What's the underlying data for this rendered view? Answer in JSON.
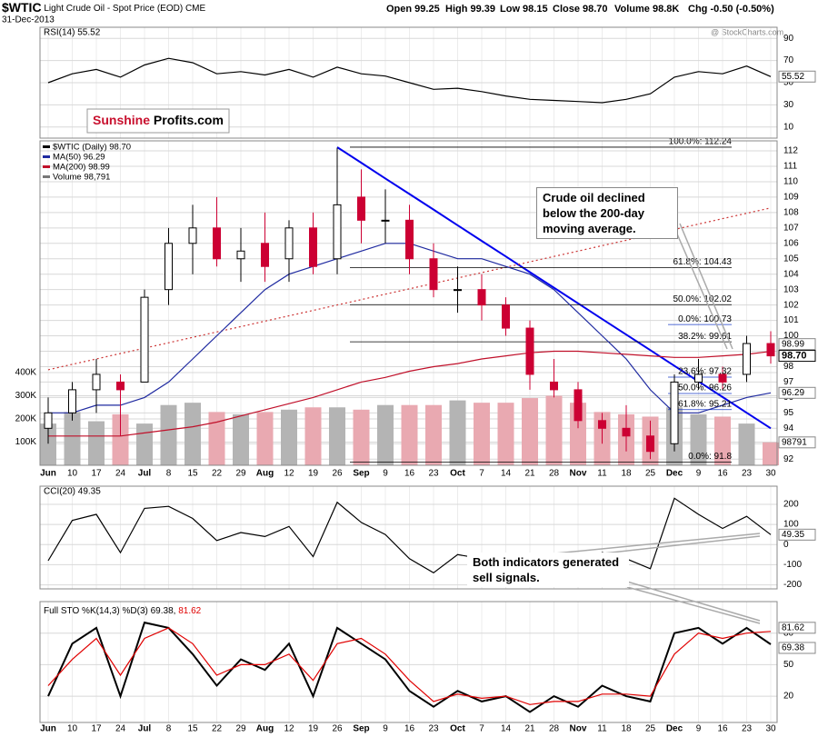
{
  "header": {
    "symbol": "$WTIC",
    "name": "Light Crude Oil - Spot Price (EOD)",
    "exchange": "CME",
    "date": "31-Dec-2013",
    "quote": [
      "Open 99.25",
      "High 99.39",
      "Low 98.15",
      "Close 98.70",
      "Volume 98.8K",
      "Chg -0.50 (-0.50%)"
    ],
    "watermark": "@ StockCharts.com"
  },
  "logo": [
    "Sunshine",
    "Profits.com"
  ],
  "chart_data": [
    {
      "type": "line",
      "title": "RSI(14) 55.52",
      "color": "#000000",
      "tag": "55.52",
      "values": [
        50,
        58,
        62,
        55,
        66,
        72,
        68,
        58,
        60,
        57,
        62,
        55,
        64,
        58,
        56,
        50,
        44,
        45,
        42,
        38,
        35,
        34,
        33,
        32,
        35,
        40,
        55,
        60,
        58,
        65,
        55.52
      ],
      "ylim": [
        0,
        100
      ],
      "yticks": [
        10,
        30,
        50,
        70,
        90
      ]
    },
    {
      "type": "candlestick",
      "title": "$WTIC (Daily) 98.70",
      "tag": "98.70",
      "up_color": "#000000",
      "down_color": "#cc0033",
      "categories": [
        "Jun",
        "10",
        "17",
        "24",
        "Jul",
        "8",
        "15",
        "22",
        "29",
        "Aug",
        "12",
        "19",
        "26",
        "Sep",
        "9",
        "16",
        "23",
        "Oct",
        "7",
        "14",
        "21",
        "28",
        "Nov",
        "11",
        "18",
        "25",
        "Dec",
        "9",
        "16",
        "23",
        "30"
      ],
      "open": [
        94,
        95,
        96.5,
        97,
        97,
        103,
        106,
        107,
        105,
        106,
        105,
        107,
        105,
        109,
        107.5,
        107.5,
        105,
        103,
        103,
        102,
        100.5,
        97,
        96.5,
        94.5,
        94,
        93.5,
        93,
        97,
        97.5,
        97.5,
        99.5
      ],
      "high": [
        96,
        97,
        98.5,
        97.5,
        103,
        107,
        108.5,
        109,
        107,
        108,
        107.5,
        108,
        112.2,
        110.8,
        109.5,
        108.5,
        106,
        104.5,
        104,
        102.5,
        101,
        98.5,
        97,
        95,
        95.5,
        94.5,
        97.5,
        98.5,
        98,
        100,
        100.3
      ],
      "low": [
        93,
        94.5,
        95,
        93.5,
        97,
        102,
        104,
        104.5,
        103.5,
        103.5,
        103.5,
        104,
        104,
        106,
        106,
        104,
        102.5,
        101.5,
        101,
        100,
        96.5,
        96,
        94,
        93,
        92.5,
        92,
        92.5,
        96.5,
        96.5,
        97,
        98.2
      ],
      "close": [
        95,
        96.5,
        97.5,
        96.5,
        102.5,
        106,
        107,
        105,
        105.5,
        104.5,
        107,
        104.5,
        108.5,
        107.5,
        107.5,
        105,
        103,
        103,
        102,
        100.5,
        97.5,
        96.5,
        94.5,
        94,
        93.5,
        92.5,
        97,
        97.5,
        97,
        99.5,
        98.7
      ],
      "series": [
        {
          "name": "MA(50) 96.29",
          "color": "#1f2aa0",
          "tag": "96.29",
          "values": [
            95,
            95,
            95.5,
            95.5,
            96,
            97,
            98.5,
            100,
            101.5,
            103,
            104,
            104.5,
            105,
            105.5,
            106,
            106,
            105.5,
            105,
            105,
            104.5,
            104,
            103,
            101.5,
            100,
            98.5,
            96.5,
            95,
            95,
            95.5,
            96,
            96.3
          ]
        },
        {
          "name": "MA(200) 98.99",
          "color": "#c0102a",
          "tag": "98.99",
          "values": [
            93.5,
            93.5,
            93.5,
            93.5,
            93.7,
            93.9,
            94.1,
            94.4,
            94.8,
            95.2,
            95.6,
            96,
            96.5,
            97,
            97.3,
            97.7,
            98,
            98.2,
            98.5,
            98.7,
            98.9,
            99,
            99,
            98.9,
            98.8,
            98.7,
            98.6,
            98.6,
            98.7,
            98.8,
            98.99
          ]
        }
      ],
      "volume": {
        "name": "Volume 98,791",
        "tag": "98791",
        "up_color": "#b4b4b4",
        "down_color": "#e9a9b1",
        "values": [
          180000,
          230000,
          190000,
          220000,
          180000,
          260000,
          270000,
          230000,
          220000,
          230000,
          240000,
          250000,
          250000,
          240000,
          260000,
          260000,
          260000,
          280000,
          270000,
          270000,
          290000,
          300000,
          270000,
          230000,
          220000,
          210000,
          250000,
          220000,
          210000,
          180000,
          98791
        ],
        "ylim": [
          0,
          1400000
        ],
        "yticks": [
          {
            "value": 100000,
            "label": "100K"
          },
          {
            "value": 200000,
            "label": "200K"
          },
          {
            "value": 300000,
            "label": "300K"
          },
          {
            "value": 400000,
            "label": "400K"
          }
        ]
      },
      "trend_lines": [
        {
          "color": "#0000ee",
          "values": [
            null,
            null,
            null,
            null,
            null,
            null,
            null,
            null,
            null,
            null,
            null,
            null,
            112.24,
            111.23,
            110.21,
            109.2,
            108.19,
            107.17,
            106.16,
            105.15,
            104.13,
            103.12,
            102.11,
            101.09,
            100.08,
            99.07,
            98.05,
            97.04,
            96.03,
            95.01,
            94.0
          ]
        },
        {
          "color": "#cc3333",
          "values": [
            97.8,
            98.15,
            98.5,
            98.85,
            99.2,
            99.55,
            99.9,
            100.25,
            100.6,
            100.95,
            101.3,
            101.65,
            102,
            102.35,
            102.7,
            103.05,
            103.4,
            103.75,
            104.1,
            104.45,
            104.8,
            105.15,
            105.5,
            105.85,
            106.2,
            106.55,
            106.9,
            107.25,
            107.6,
            107.95,
            108.3
          ]
        }
      ],
      "fib_sets": [
        {
          "color": "#000000",
          "levels": [
            {
              "value": 112.24,
              "label": "100.0%: 112.24"
            },
            {
              "value": 104.43,
              "label": "61.8%: 104.43"
            },
            {
              "value": 102.02,
              "label": "50.0%: 102.02"
            },
            {
              "value": 99.61,
              "label": "38.2%: 99.61"
            },
            {
              "value": 91.8,
              "label": "0.0%: 91.8"
            }
          ]
        },
        {
          "color": "#1a3cc8",
          "levels": [
            {
              "value": 100.73,
              "label": "0.0%: 100.73"
            },
            {
              "value": 97.32,
              "label": "23.6%: 97.32"
            },
            {
              "value": 96.26,
              "label": "50.0%: 96.26"
            },
            {
              "value": 95.21,
              "label": "61.8%: 95.21"
            }
          ]
        }
      ],
      "annotation": "Crude oil declined below the 200-day moving average.",
      "ylim": [
        91.6,
        112.65
      ],
      "yticks": [
        92,
        93,
        94,
        95,
        96,
        97,
        98,
        99,
        100,
        101,
        102,
        103,
        104,
        105,
        106,
        107,
        108,
        109,
        110,
        111,
        112
      ]
    },
    {
      "type": "line",
      "title": "CCI(20) 49.35",
      "color": "#000000",
      "tag": "49.35",
      "values": [
        -80,
        120,
        150,
        -40,
        180,
        190,
        130,
        20,
        60,
        40,
        90,
        -60,
        210,
        110,
        50,
        -70,
        -140,
        -50,
        -70,
        -160,
        -90,
        -130,
        -180,
        -40,
        -70,
        -120,
        230,
        150,
        80,
        140,
        49.35
      ],
      "annotation": "Both indicators generated sell signals.",
      "ylim": [
        -220,
        290
      ],
      "yticks": [
        -200,
        -100,
        0,
        100,
        200
      ]
    },
    {
      "type": "line",
      "title": "Full STO %K(14,3) %D(3)",
      "categories": [
        "Jun",
        "10",
        "17",
        "24",
        "Jul",
        "8",
        "15",
        "22",
        "29",
        "Aug",
        "12",
        "19",
        "26",
        "Sep",
        "9",
        "16",
        "23",
        "Oct",
        "7",
        "14",
        "21",
        "28",
        "Nov",
        "11",
        "18",
        "25",
        "Dec",
        "9",
        "16",
        "23",
        "30"
      ],
      "series": [
        {
          "name": "69.38,",
          "color": "#000000",
          "tag": "69.38",
          "values": [
            20,
            70,
            85,
            20,
            90,
            85,
            60,
            30,
            55,
            45,
            70,
            20,
            85,
            70,
            55,
            25,
            10,
            25,
            15,
            20,
            5,
            20,
            10,
            30,
            20,
            15,
            80,
            85,
            70,
            85,
            69.38
          ]
        },
        {
          "name": "81.62",
          "color": "#e00000",
          "tag": "81.62",
          "values": [
            30,
            55,
            75,
            40,
            75,
            85,
            70,
            40,
            50,
            50,
            60,
            35,
            70,
            75,
            60,
            35,
            15,
            22,
            18,
            20,
            12,
            15,
            15,
            22,
            22,
            20,
            60,
            80,
            75,
            80,
            81.62
          ]
        }
      ],
      "ylim": [
        -5,
        110
      ],
      "yticks": [
        20,
        50,
        80
      ]
    }
  ]
}
